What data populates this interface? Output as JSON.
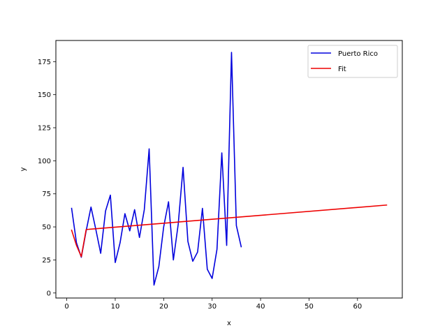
{
  "chart_data": {
    "type": "line",
    "title": "",
    "xlabel": "x",
    "ylabel": "y",
    "xlim": [
      -2.25,
      69.25
    ],
    "ylim": [
      -3.8,
      191
    ],
    "xticks": [
      0,
      10,
      20,
      30,
      40,
      50,
      60
    ],
    "yticks": [
      0,
      25,
      50,
      75,
      100,
      125,
      150,
      175
    ],
    "grid": false,
    "legend_position": "top-right",
    "series": [
      {
        "name": "Puerto Rico",
        "color": "#0000dd",
        "x": [
          1,
          2,
          3,
          4,
          5,
          6,
          7,
          8,
          9,
          10,
          11,
          12,
          13,
          14,
          15,
          16,
          17,
          18,
          19,
          20,
          21,
          22,
          23,
          24,
          25,
          26,
          27,
          28,
          29,
          30,
          31,
          32,
          33,
          34,
          35,
          36
        ],
        "y": [
          64,
          38,
          27,
          47,
          65,
          48,
          30,
          62,
          74,
          23,
          38,
          60,
          47,
          63,
          42,
          63,
          109,
          6,
          20,
          50,
          69,
          25,
          52,
          95,
          39,
          24,
          31,
          64,
          18,
          11,
          33,
          106,
          36,
          182,
          51,
          35
        ]
      },
      {
        "name": "Fit",
        "color": "#ee0000",
        "x": [
          1,
          2,
          3,
          4,
          66
        ],
        "y": [
          47.5,
          36,
          27.5,
          48,
          66.5
        ]
      }
    ]
  }
}
